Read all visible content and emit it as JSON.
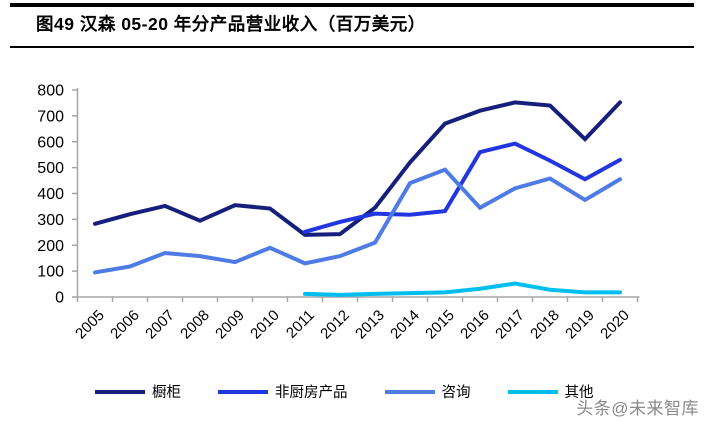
{
  "header": {
    "title": "图49 汉森 05-20 年分产品营业收入（百万美元）"
  },
  "watermark": {
    "text": "头条@未来智库"
  },
  "chart_data": {
    "type": "line",
    "title": "汉森 05-20 年分产品营业收入（百万美元）",
    "xlabel": "",
    "ylabel": "",
    "categories": [
      "2005",
      "2006",
      "2007",
      "2008",
      "2009",
      "2010",
      "2011",
      "2012",
      "2013",
      "2014",
      "2015",
      "2016",
      "2017",
      "2018",
      "2019",
      "2020"
    ],
    "series": [
      {
        "name": "橱柜",
        "color": "#16207c",
        "values": [
          283,
          320,
          352,
          295,
          355,
          342,
          240,
          243,
          345,
          520,
          670,
          720,
          752,
          740,
          610,
          752
        ]
      },
      {
        "name": "非厨房产品",
        "color": "#2236e0",
        "values": [
          null,
          null,
          null,
          null,
          null,
          null,
          252,
          290,
          322,
          318,
          332,
          560,
          593,
          527,
          455,
          530
        ]
      },
      {
        "name": "咨询",
        "color": "#4e7be5",
        "values": [
          95,
          118,
          170,
          158,
          135,
          190,
          130,
          158,
          210,
          440,
          492,
          345,
          420,
          458,
          375,
          455
        ]
      },
      {
        "name": "其他",
        "color": "#00bff0",
        "values": [
          null,
          null,
          null,
          null,
          null,
          null,
          12,
          8,
          12,
          15,
          18,
          32,
          52,
          28,
          18,
          18
        ]
      }
    ],
    "ylim": [
      0,
      800
    ],
    "ytick_step": 100,
    "grid": false,
    "legend_position": "bottom",
    "axis_color": "#a6a6a6"
  }
}
